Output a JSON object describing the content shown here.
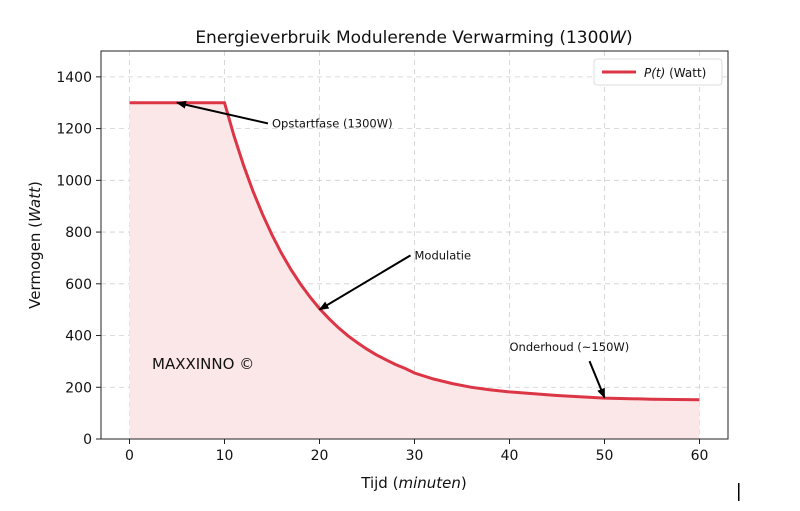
{
  "chart_data": {
    "type": "line",
    "title": "Energieverbruik Modulerende Verwarming (1300",
    "title_italic": "W",
    "title_end": ")",
    "xlabel": "Tijd (",
    "xlabel_italic": "minuten",
    "xlabel_end": ")",
    "ylabel": "Vermogen (",
    "ylabel_italic": "Watt",
    "ylabel_end": ")",
    "xlim": [
      -3,
      63
    ],
    "ylim": [
      0,
      1500
    ],
    "xticks": [
      0,
      10,
      20,
      30,
      40,
      50,
      60
    ],
    "yticks": [
      0,
      200,
      400,
      600,
      800,
      1000,
      1200,
      1400
    ],
    "grid": true,
    "legend_placement": "top-right",
    "series": [
      {
        "name_italic": "P(t)",
        "name": " (Watt)",
        "color": "#dc3545",
        "fill_color": "#fbe6e8",
        "x": [
          0,
          5,
          10,
          11,
          12,
          13,
          14,
          15,
          16,
          17,
          18,
          19,
          20,
          21,
          22,
          23,
          24,
          25,
          26,
          27,
          28,
          29,
          30,
          32,
          34,
          36,
          38,
          40,
          45,
          50,
          55,
          60
        ],
        "y": [
          1300,
          1300,
          1300,
          1172,
          1059,
          958,
          869,
          789,
          718,
          655,
          599,
          549,
          504,
          465,
          430,
          399,
          372,
          347,
          325,
          306,
          288,
          273,
          255,
          232,
          214,
          200,
          190,
          182,
          168,
          158,
          154,
          152
        ]
      }
    ],
    "annotations": [
      {
        "text": "Opstartfase (1300W)",
        "text_xy": [
          15,
          1220
        ],
        "arrow_to": [
          5,
          1300
        ]
      },
      {
        "text": "Modulatie",
        "text_xy": [
          30,
          710
        ],
        "arrow_to": [
          20,
          500
        ]
      },
      {
        "text": "Onderhoud (~150W)",
        "text_xy": [
          40,
          355
        ],
        "arrow_to": [
          50,
          160
        ]
      }
    ],
    "watermark": "MAXXINNO ©"
  }
}
